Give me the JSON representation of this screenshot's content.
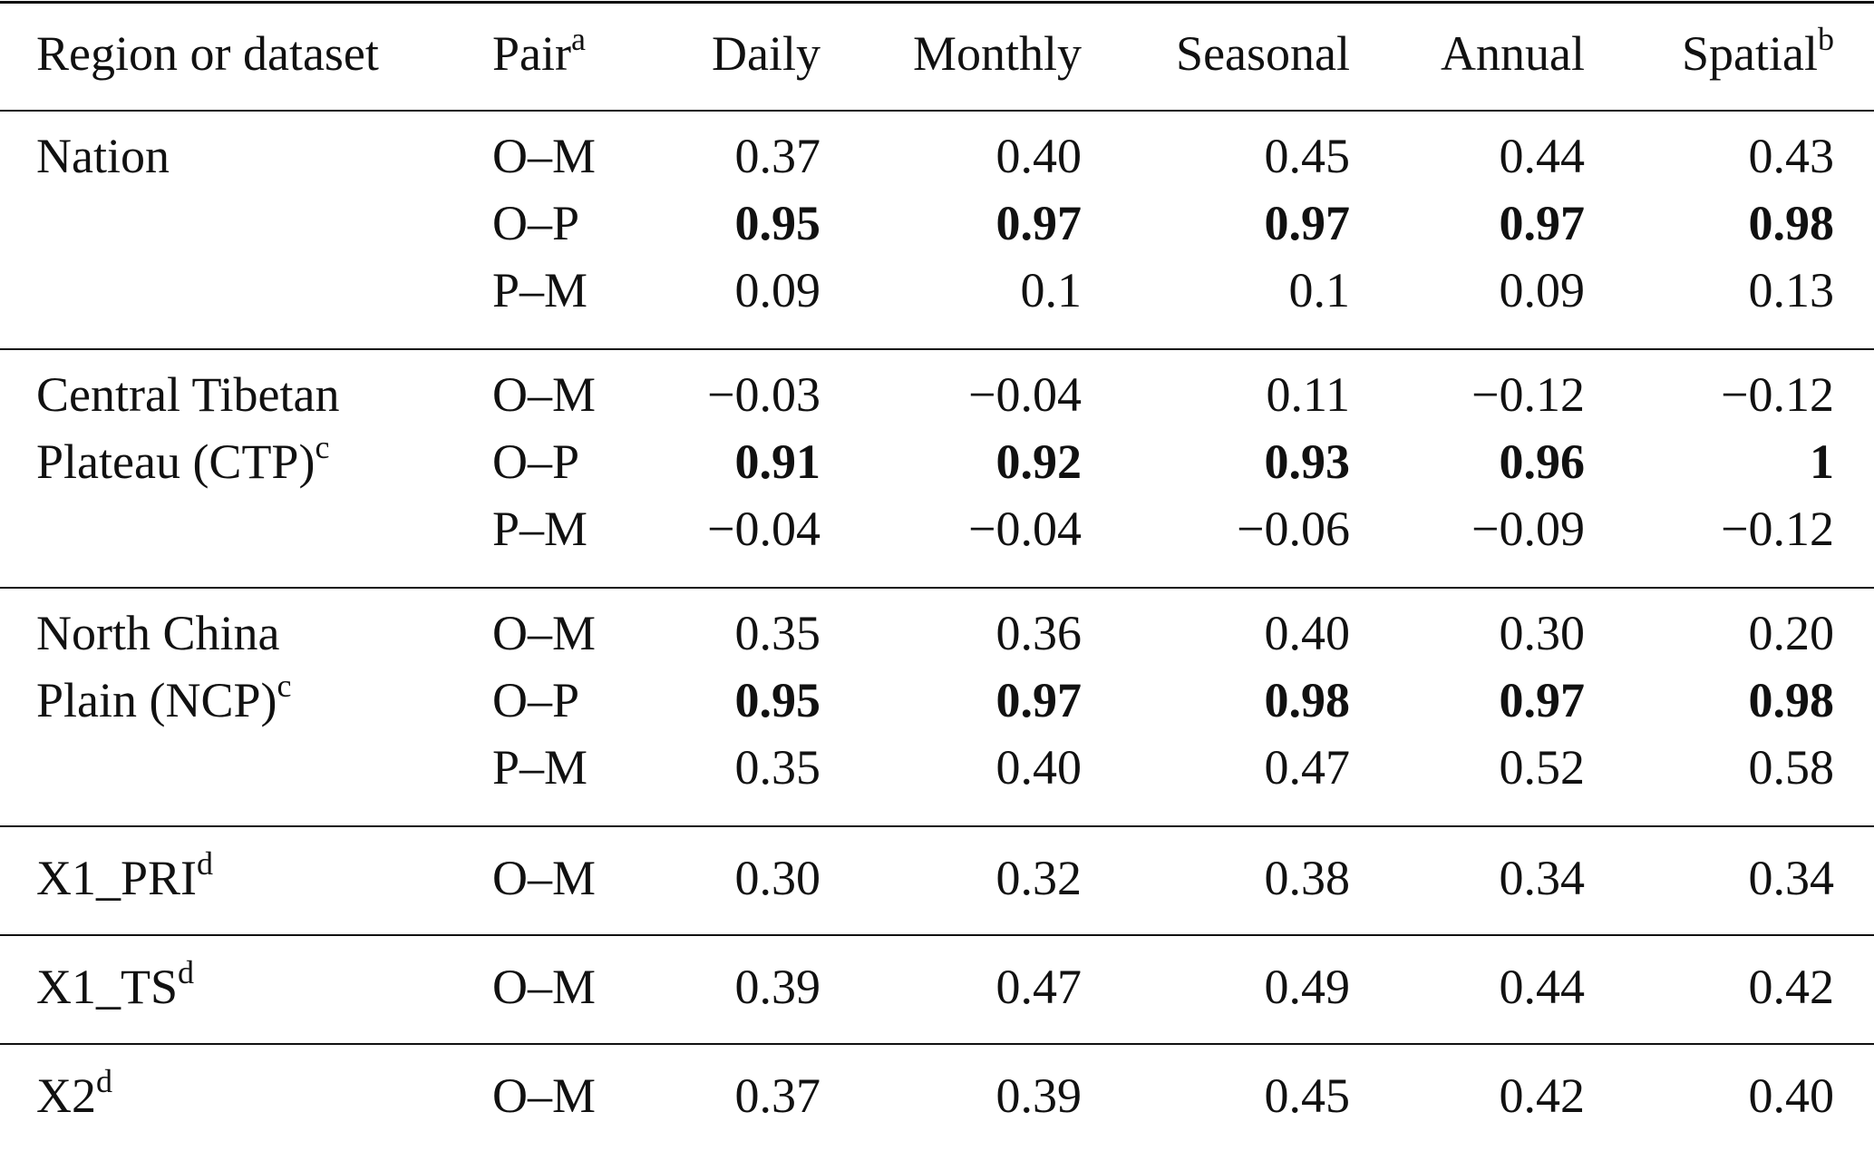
{
  "table": {
    "header": [
      {
        "text": "Region or dataset"
      },
      {
        "text": "Pair",
        "sup": "a"
      },
      {
        "text": "Daily"
      },
      {
        "text": "Monthly"
      },
      {
        "text": "Seasonal"
      },
      {
        "text": "Annual"
      },
      {
        "text": "Spatial",
        "sup": "b"
      }
    ],
    "groups": [
      {
        "region": [
          "Nation"
        ],
        "rows": [
          {
            "pair": "O–M",
            "values": [
              "0.37",
              "0.40",
              "0.45",
              "0.44",
              "0.43"
            ]
          },
          {
            "pair": "O–P",
            "bold": true,
            "values": [
              "0.95",
              "0.97",
              "0.97",
              "0.97",
              "0.98"
            ]
          },
          {
            "pair": "P–M",
            "values": [
              "0.09",
              "0.1",
              "0.1",
              "0.09",
              "0.13"
            ]
          }
        ]
      },
      {
        "region": [
          "Central Tibetan",
          "Plateau (CTP)"
        ],
        "sup": "c",
        "rows": [
          {
            "pair": "O–M",
            "values": [
              "−0.03",
              "−0.04",
              "0.11",
              "−0.12",
              "−0.12"
            ]
          },
          {
            "pair": "O–P",
            "bold": true,
            "values": [
              "0.91",
              "0.92",
              "0.93",
              "0.96",
              "1"
            ]
          },
          {
            "pair": "P–M",
            "values": [
              "−0.04",
              "−0.04",
              "−0.06",
              "−0.09",
              "−0.12"
            ]
          }
        ]
      },
      {
        "region": [
          "North China",
          "Plain (NCP)"
        ],
        "sup": "c",
        "rows": [
          {
            "pair": "O–M",
            "values": [
              "0.35",
              "0.36",
              "0.40",
              "0.30",
              "0.20"
            ]
          },
          {
            "pair": "O–P",
            "bold": true,
            "values": [
              "0.95",
              "0.97",
              "0.98",
              "0.97",
              "0.98"
            ]
          },
          {
            "pair": "P–M",
            "values": [
              "0.35",
              "0.40",
              "0.47",
              "0.52",
              "0.58"
            ]
          }
        ]
      },
      {
        "region": [
          "X1_PRI"
        ],
        "sup": "d",
        "rows": [
          {
            "pair": "O–M",
            "values": [
              "0.30",
              "0.32",
              "0.38",
              "0.34",
              "0.34"
            ]
          }
        ]
      },
      {
        "region": [
          "X1_TS"
        ],
        "sup": "d",
        "rows": [
          {
            "pair": "O–M",
            "values": [
              "0.39",
              "0.47",
              "0.49",
              "0.44",
              "0.42"
            ]
          }
        ]
      },
      {
        "region": [
          "X2"
        ],
        "sup": "d",
        "rows": [
          {
            "pair": "O–M",
            "values": [
              "0.37",
              "0.39",
              "0.45",
              "0.42",
              "0.40"
            ]
          }
        ]
      }
    ]
  }
}
